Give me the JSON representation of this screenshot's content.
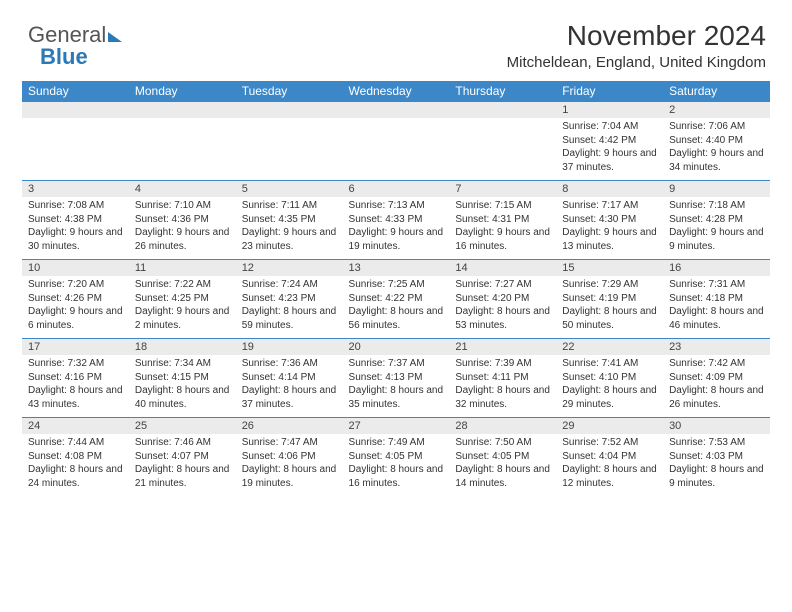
{
  "logo": {
    "part1": "General",
    "part2": "Blue"
  },
  "title": "November 2024",
  "location": "Mitcheldean, England, United Kingdom",
  "colors": {
    "header_bg": "#3b87c8",
    "header_text": "#ffffff",
    "num_row_bg": "#ebebeb",
    "text": "#333333",
    "logo_gray": "#555555",
    "logo_blue": "#2a7ab8",
    "page_bg": "#ffffff"
  },
  "typography": {
    "title_fontsize": 28,
    "location_fontsize": 15,
    "dayhdr_fontsize": 12,
    "daynum_fontsize": 11,
    "cell_fontsize": 10,
    "font_family": "Arial"
  },
  "days_of_week": [
    "Sunday",
    "Monday",
    "Tuesday",
    "Wednesday",
    "Thursday",
    "Friday",
    "Saturday"
  ],
  "weeks": [
    [
      null,
      null,
      null,
      null,
      null,
      {
        "n": "1",
        "sr": "Sunrise: 7:04 AM",
        "ss": "Sunset: 4:42 PM",
        "dl": "Daylight: 9 hours and 37 minutes."
      },
      {
        "n": "2",
        "sr": "Sunrise: 7:06 AM",
        "ss": "Sunset: 4:40 PM",
        "dl": "Daylight: 9 hours and 34 minutes."
      }
    ],
    [
      {
        "n": "3",
        "sr": "Sunrise: 7:08 AM",
        "ss": "Sunset: 4:38 PM",
        "dl": "Daylight: 9 hours and 30 minutes."
      },
      {
        "n": "4",
        "sr": "Sunrise: 7:10 AM",
        "ss": "Sunset: 4:36 PM",
        "dl": "Daylight: 9 hours and 26 minutes."
      },
      {
        "n": "5",
        "sr": "Sunrise: 7:11 AM",
        "ss": "Sunset: 4:35 PM",
        "dl": "Daylight: 9 hours and 23 minutes."
      },
      {
        "n": "6",
        "sr": "Sunrise: 7:13 AM",
        "ss": "Sunset: 4:33 PM",
        "dl": "Daylight: 9 hours and 19 minutes."
      },
      {
        "n": "7",
        "sr": "Sunrise: 7:15 AM",
        "ss": "Sunset: 4:31 PM",
        "dl": "Daylight: 9 hours and 16 minutes."
      },
      {
        "n": "8",
        "sr": "Sunrise: 7:17 AM",
        "ss": "Sunset: 4:30 PM",
        "dl": "Daylight: 9 hours and 13 minutes."
      },
      {
        "n": "9",
        "sr": "Sunrise: 7:18 AM",
        "ss": "Sunset: 4:28 PM",
        "dl": "Daylight: 9 hours and 9 minutes."
      }
    ],
    [
      {
        "n": "10",
        "sr": "Sunrise: 7:20 AM",
        "ss": "Sunset: 4:26 PM",
        "dl": "Daylight: 9 hours and 6 minutes."
      },
      {
        "n": "11",
        "sr": "Sunrise: 7:22 AM",
        "ss": "Sunset: 4:25 PM",
        "dl": "Daylight: 9 hours and 2 minutes."
      },
      {
        "n": "12",
        "sr": "Sunrise: 7:24 AM",
        "ss": "Sunset: 4:23 PM",
        "dl": "Daylight: 8 hours and 59 minutes."
      },
      {
        "n": "13",
        "sr": "Sunrise: 7:25 AM",
        "ss": "Sunset: 4:22 PM",
        "dl": "Daylight: 8 hours and 56 minutes."
      },
      {
        "n": "14",
        "sr": "Sunrise: 7:27 AM",
        "ss": "Sunset: 4:20 PM",
        "dl": "Daylight: 8 hours and 53 minutes."
      },
      {
        "n": "15",
        "sr": "Sunrise: 7:29 AM",
        "ss": "Sunset: 4:19 PM",
        "dl": "Daylight: 8 hours and 50 minutes."
      },
      {
        "n": "16",
        "sr": "Sunrise: 7:31 AM",
        "ss": "Sunset: 4:18 PM",
        "dl": "Daylight: 8 hours and 46 minutes."
      }
    ],
    [
      {
        "n": "17",
        "sr": "Sunrise: 7:32 AM",
        "ss": "Sunset: 4:16 PM",
        "dl": "Daylight: 8 hours and 43 minutes."
      },
      {
        "n": "18",
        "sr": "Sunrise: 7:34 AM",
        "ss": "Sunset: 4:15 PM",
        "dl": "Daylight: 8 hours and 40 minutes."
      },
      {
        "n": "19",
        "sr": "Sunrise: 7:36 AM",
        "ss": "Sunset: 4:14 PM",
        "dl": "Daylight: 8 hours and 37 minutes."
      },
      {
        "n": "20",
        "sr": "Sunrise: 7:37 AM",
        "ss": "Sunset: 4:13 PM",
        "dl": "Daylight: 8 hours and 35 minutes."
      },
      {
        "n": "21",
        "sr": "Sunrise: 7:39 AM",
        "ss": "Sunset: 4:11 PM",
        "dl": "Daylight: 8 hours and 32 minutes."
      },
      {
        "n": "22",
        "sr": "Sunrise: 7:41 AM",
        "ss": "Sunset: 4:10 PM",
        "dl": "Daylight: 8 hours and 29 minutes."
      },
      {
        "n": "23",
        "sr": "Sunrise: 7:42 AM",
        "ss": "Sunset: 4:09 PM",
        "dl": "Daylight: 8 hours and 26 minutes."
      }
    ],
    [
      {
        "n": "24",
        "sr": "Sunrise: 7:44 AM",
        "ss": "Sunset: 4:08 PM",
        "dl": "Daylight: 8 hours and 24 minutes."
      },
      {
        "n": "25",
        "sr": "Sunrise: 7:46 AM",
        "ss": "Sunset: 4:07 PM",
        "dl": "Daylight: 8 hours and 21 minutes."
      },
      {
        "n": "26",
        "sr": "Sunrise: 7:47 AM",
        "ss": "Sunset: 4:06 PM",
        "dl": "Daylight: 8 hours and 19 minutes."
      },
      {
        "n": "27",
        "sr": "Sunrise: 7:49 AM",
        "ss": "Sunset: 4:05 PM",
        "dl": "Daylight: 8 hours and 16 minutes."
      },
      {
        "n": "28",
        "sr": "Sunrise: 7:50 AM",
        "ss": "Sunset: 4:05 PM",
        "dl": "Daylight: 8 hours and 14 minutes."
      },
      {
        "n": "29",
        "sr": "Sunrise: 7:52 AM",
        "ss": "Sunset: 4:04 PM",
        "dl": "Daylight: 8 hours and 12 minutes."
      },
      {
        "n": "30",
        "sr": "Sunrise: 7:53 AM",
        "ss": "Sunset: 4:03 PM",
        "dl": "Daylight: 8 hours and 9 minutes."
      }
    ]
  ]
}
